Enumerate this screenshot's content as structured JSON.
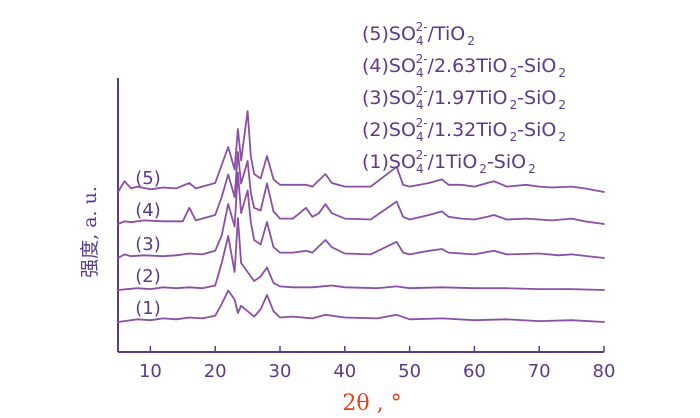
{
  "chart_data": {
    "type": "line",
    "title": "",
    "xlabel": "2θ , °",
    "ylabel": "强度, a. u.",
    "xlim": [
      5,
      80
    ],
    "x_ticks": [
      10,
      20,
      30,
      40,
      50,
      60,
      70,
      80
    ],
    "grid": false,
    "legend_position": "top-right",
    "line_color": "#8b4fa5",
    "axis_color": "#5b3a8c",
    "xlabel_color": "#e8401c",
    "legend": [
      {
        "pre": "(5)SO",
        "sub": "4",
        "sup": "2-",
        "mid": "/TiO",
        "sub2": "2",
        "end": ""
      },
      {
        "pre": "(4)SO",
        "sub": "4",
        "sup": "2-",
        "mid": "/2.63TiO",
        "sub2": "2",
        "end": "-SiO",
        "sub3": "2"
      },
      {
        "pre": "(3)SO",
        "sub": "4",
        "sup": "2-",
        "mid": "/1.97TiO",
        "sub2": "2",
        "end": "-SiO",
        "sub3": "2"
      },
      {
        "pre": "(2)SO",
        "sub": "4",
        "sup": "2-",
        "mid": "/1.32TiO",
        "sub2": "2",
        "end": "-SiO",
        "sub3": "2"
      },
      {
        "pre": "(1)SO",
        "sub": "4",
        "sup": "2-",
        "mid": "/1TiO",
        "sub2": "2",
        "end": "-SiO",
        "sub3": "2"
      }
    ],
    "series": [
      {
        "name": "(1)",
        "offset": 0,
        "points": [
          [
            5,
            0
          ],
          [
            8,
            3
          ],
          [
            10,
            2
          ],
          [
            12,
            4
          ],
          [
            14,
            3
          ],
          [
            16,
            5
          ],
          [
            18,
            4
          ],
          [
            20,
            7
          ],
          [
            21,
            20
          ],
          [
            22,
            35
          ],
          [
            23,
            25
          ],
          [
            23.5,
            10
          ],
          [
            24,
            18
          ],
          [
            25,
            12
          ],
          [
            26,
            6
          ],
          [
            27,
            14
          ],
          [
            28,
            30
          ],
          [
            29,
            12
          ],
          [
            30,
            5
          ],
          [
            32,
            6
          ],
          [
            35,
            4
          ],
          [
            37,
            8
          ],
          [
            40,
            5
          ],
          [
            45,
            4
          ],
          [
            48,
            8
          ],
          [
            50,
            3
          ],
          [
            55,
            4
          ],
          [
            60,
            2
          ],
          [
            65,
            3
          ],
          [
            70,
            1
          ],
          [
            75,
            2
          ],
          [
            80,
            0
          ]
        ]
      },
      {
        "name": "(2)",
        "offset": 1,
        "points": [
          [
            5,
            0
          ],
          [
            8,
            2
          ],
          [
            10,
            1
          ],
          [
            12,
            3
          ],
          [
            14,
            2
          ],
          [
            16,
            3
          ],
          [
            18,
            2
          ],
          [
            20,
            5
          ],
          [
            21,
            30
          ],
          [
            22,
            60
          ],
          [
            22.5,
            40
          ],
          [
            23,
            20
          ],
          [
            23.5,
            80
          ],
          [
            24,
            30
          ],
          [
            25,
            20
          ],
          [
            26,
            10
          ],
          [
            27,
            15
          ],
          [
            28,
            25
          ],
          [
            29,
            8
          ],
          [
            30,
            4
          ],
          [
            32,
            3
          ],
          [
            35,
            3
          ],
          [
            38,
            5
          ],
          [
            40,
            3
          ],
          [
            45,
            2
          ],
          [
            48,
            4
          ],
          [
            50,
            2
          ],
          [
            55,
            3
          ],
          [
            60,
            2
          ],
          [
            65,
            2
          ],
          [
            70,
            1
          ],
          [
            75,
            1
          ],
          [
            80,
            0
          ]
        ]
      },
      {
        "name": "(3)",
        "offset": 2,
        "points": [
          [
            5,
            0
          ],
          [
            6,
            4
          ],
          [
            7,
            2
          ],
          [
            9,
            3
          ],
          [
            12,
            2
          ],
          [
            14,
            3
          ],
          [
            16,
            5
          ],
          [
            18,
            4
          ],
          [
            20,
            8
          ],
          [
            21,
            25
          ],
          [
            22,
            60
          ],
          [
            23,
            35
          ],
          [
            23.5,
            95
          ],
          [
            24,
            50
          ],
          [
            25,
            75
          ],
          [
            25.5,
            40
          ],
          [
            26,
            20
          ],
          [
            27,
            15
          ],
          [
            28,
            40
          ],
          [
            29,
            12
          ],
          [
            30,
            6
          ],
          [
            32,
            6
          ],
          [
            34,
            8
          ],
          [
            35,
            6
          ],
          [
            37,
            20
          ],
          [
            38,
            12
          ],
          [
            40,
            5
          ],
          [
            44,
            4
          ],
          [
            48,
            18
          ],
          [
            49,
            6
          ],
          [
            50,
            4
          ],
          [
            53,
            8
          ],
          [
            55,
            10
          ],
          [
            56,
            6
          ],
          [
            60,
            4
          ],
          [
            63,
            8
          ],
          [
            65,
            4
          ],
          [
            70,
            5
          ],
          [
            73,
            3
          ],
          [
            75,
            4
          ],
          [
            80,
            0
          ]
        ]
      },
      {
        "name": "(4)",
        "offset": 3,
        "points": [
          [
            5,
            0
          ],
          [
            6,
            3
          ],
          [
            7,
            2
          ],
          [
            9,
            4
          ],
          [
            12,
            3
          ],
          [
            14,
            3
          ],
          [
            15,
            3
          ],
          [
            16,
            18
          ],
          [
            17,
            4
          ],
          [
            18,
            6
          ],
          [
            20,
            10
          ],
          [
            21,
            30
          ],
          [
            22,
            55
          ],
          [
            23,
            30
          ],
          [
            23.5,
            80
          ],
          [
            24,
            45
          ],
          [
            25,
            70
          ],
          [
            25.5,
            35
          ],
          [
            26,
            18
          ],
          [
            27,
            15
          ],
          [
            28,
            45
          ],
          [
            29,
            14
          ],
          [
            30,
            6
          ],
          [
            32,
            6
          ],
          [
            34,
            18
          ],
          [
            35,
            8
          ],
          [
            36,
            12
          ],
          [
            37,
            22
          ],
          [
            38,
            12
          ],
          [
            40,
            6
          ],
          [
            44,
            5
          ],
          [
            48,
            25
          ],
          [
            49,
            8
          ],
          [
            50,
            5
          ],
          [
            53,
            10
          ],
          [
            55,
            14
          ],
          [
            56,
            8
          ],
          [
            58,
            6
          ],
          [
            60,
            5
          ],
          [
            62,
            8
          ],
          [
            63,
            10
          ],
          [
            65,
            5
          ],
          [
            68,
            6
          ],
          [
            70,
            5
          ],
          [
            72,
            4
          ],
          [
            75,
            6
          ],
          [
            77,
            3
          ],
          [
            80,
            0
          ]
        ]
      },
      {
        "name": "(5)",
        "offset": 4,
        "points": [
          [
            5,
            0
          ],
          [
            6,
            12
          ],
          [
            7,
            4
          ],
          [
            8,
            6
          ],
          [
            10,
            3
          ],
          [
            12,
            5
          ],
          [
            14,
            4
          ],
          [
            16,
            10
          ],
          [
            17,
            4
          ],
          [
            18,
            6
          ],
          [
            20,
            10
          ],
          [
            21,
            30
          ],
          [
            22,
            50
          ],
          [
            23,
            25
          ],
          [
            23.5,
            70
          ],
          [
            24,
            35
          ],
          [
            25,
            90
          ],
          [
            25.5,
            40
          ],
          [
            26,
            20
          ],
          [
            27,
            15
          ],
          [
            28,
            40
          ],
          [
            29,
            14
          ],
          [
            30,
            8
          ],
          [
            32,
            8
          ],
          [
            34,
            8
          ],
          [
            35,
            6
          ],
          [
            37,
            20
          ],
          [
            38,
            10
          ],
          [
            40,
            6
          ],
          [
            44,
            6
          ],
          [
            48,
            28
          ],
          [
            49,
            8
          ],
          [
            50,
            6
          ],
          [
            53,
            10
          ],
          [
            55,
            14
          ],
          [
            56,
            8
          ],
          [
            58,
            8
          ],
          [
            60,
            6
          ],
          [
            62,
            10
          ],
          [
            63,
            12
          ],
          [
            65,
            6
          ],
          [
            68,
            8
          ],
          [
            70,
            6
          ],
          [
            72,
            5
          ],
          [
            75,
            6
          ],
          [
            77,
            4
          ],
          [
            80,
            0
          ]
        ]
      }
    ]
  }
}
